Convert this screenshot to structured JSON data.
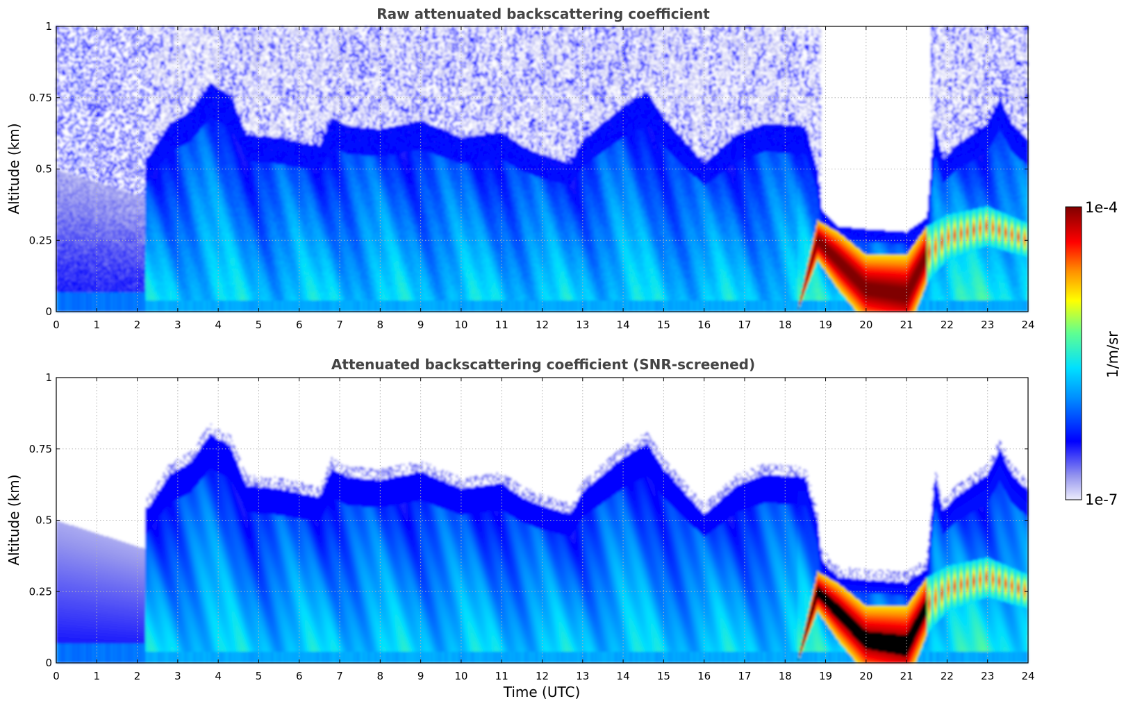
{
  "chart_data": [
    {
      "type": "heatmap",
      "title": "Raw attenuated backscattering coefficient",
      "xlabel": "",
      "ylabel": "Altitude (km)",
      "xlim": [
        0,
        24
      ],
      "ylim": [
        0,
        1
      ],
      "x_ticks": [
        "0",
        "1",
        "2",
        "3",
        "4",
        "5",
        "6",
        "7",
        "8",
        "9",
        "10",
        "11",
        "12",
        "13",
        "14",
        "15",
        "16",
        "17",
        "18",
        "19",
        "20",
        "21",
        "22",
        "23",
        "24"
      ],
      "y_ticks": [
        "0",
        "0.25",
        "0.5",
        "0.75",
        "1"
      ],
      "grid": true,
      "screened": false
    },
    {
      "type": "heatmap",
      "title": "Attenuated backscattering coefficient (SNR-screened)",
      "xlabel": "Time (UTC)",
      "ylabel": "Altitude (km)",
      "xlim": [
        0,
        24
      ],
      "ylim": [
        0,
        1
      ],
      "x_ticks": [
        "0",
        "1",
        "2",
        "3",
        "4",
        "5",
        "6",
        "7",
        "8",
        "9",
        "10",
        "11",
        "12",
        "13",
        "14",
        "15",
        "16",
        "17",
        "18",
        "19",
        "20",
        "21",
        "22",
        "23",
        "24"
      ],
      "y_ticks": [
        "0",
        "0.25",
        "0.5",
        "0.75",
        "1"
      ],
      "grid": true,
      "screened": true
    }
  ],
  "colorbar": {
    "label": "1/m/sr",
    "min_label": "1e-7",
    "max_label": "1e-4",
    "scale": "log",
    "colormap": [
      "#ececfb",
      "#9696ee",
      "#0000ff",
      "#0090ff",
      "#00e0ff",
      "#60ff90",
      "#ffff00",
      "#ff9000",
      "#ff0000",
      "#800000"
    ]
  }
}
